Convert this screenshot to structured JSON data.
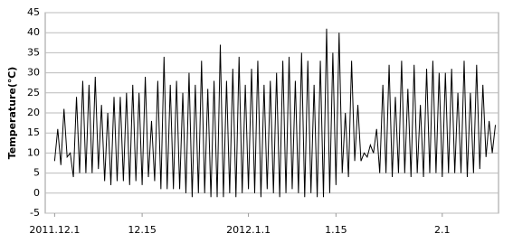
{
  "chart_data": {
    "type": "line",
    "y_label": "Temperature(℃)",
    "x": [
      0,
      0.5,
      1,
      1.5,
      2,
      2.5,
      3,
      3.5,
      4,
      4.5,
      5,
      5.5,
      6,
      6.5,
      7,
      7.5,
      8,
      8.5,
      9,
      9.5,
      10,
      10.5,
      11,
      11.5,
      12,
      12.5,
      13,
      13.5,
      14,
      14.5,
      15,
      15.5,
      16,
      16.5,
      17,
      17.5,
      18,
      18.5,
      19,
      19.5,
      20,
      20.5,
      21,
      21.5,
      22,
      22.5,
      23,
      23.5,
      24,
      24.5,
      25,
      25.5,
      26,
      26.5,
      27,
      27.5,
      28,
      28.5,
      29,
      29.5,
      30,
      30.5,
      31,
      31.5,
      32,
      32.5,
      33,
      33.5,
      34,
      34.5,
      35,
      35.5,
      36,
      36.5,
      37,
      37.5,
      38,
      38.5,
      39,
      39.5,
      40,
      40.5,
      41,
      41.5,
      42,
      42.5,
      43,
      43.5,
      44,
      44.5,
      45,
      45.5,
      46,
      46.5,
      47,
      47.5,
      48,
      48.5,
      49,
      49.5,
      50,
      50.5,
      51,
      51.5,
      52,
      52.5,
      53,
      53.5,
      54,
      54.5,
      55,
      55.5,
      56,
      56.5,
      57,
      57.5,
      58,
      58.5,
      59,
      59.5,
      60,
      60.5,
      61,
      61.5,
      62,
      62.5,
      63,
      63.5,
      64,
      64.5,
      65,
      65.5,
      66,
      66.5,
      67,
      67.5,
      68,
      68.5,
      69,
      69.5,
      70,
      70.5
    ],
    "series": [
      {
        "color": "#000000",
        "values": [
          8,
          16,
          7,
          21,
          9,
          10,
          4,
          24,
          5,
          28,
          5,
          27,
          5,
          29,
          6,
          22,
          3,
          20,
          2,
          24,
          3,
          24,
          3,
          25,
          2,
          27,
          3,
          25,
          2,
          29,
          4,
          18,
          3,
          28,
          1,
          34,
          1,
          27,
          1,
          28,
          1,
          25,
          0,
          30,
          -1,
          27,
          0,
          33,
          0,
          26,
          -1,
          28,
          -1,
          37,
          -1,
          28,
          0,
          31,
          -1,
          34,
          0,
          27,
          1,
          31,
          0,
          33,
          -1,
          27,
          1,
          28,
          0,
          30,
          -1,
          33,
          0,
          34,
          1,
          28,
          0,
          35,
          -1,
          33,
          0,
          27,
          -1,
          33,
          -1,
          41,
          0,
          35,
          2,
          40,
          5,
          20,
          4,
          33,
          8,
          22,
          8,
          10,
          9,
          12,
          10,
          16,
          5,
          27,
          5,
          32,
          4,
          24,
          5,
          33,
          5,
          26,
          4,
          32,
          5,
          22,
          4,
          31,
          5,
          33,
          5,
          30,
          4,
          30,
          5,
          31,
          5,
          25,
          5,
          33,
          4,
          25,
          5,
          32,
          6,
          27,
          9,
          18,
          10,
          17
        ]
      }
    ],
    "xlim": [
      -1.5,
      71
    ],
    "xticks": [
      {
        "value": 0,
        "label": "2011.12.1"
      },
      {
        "value": 14,
        "label": "12.15"
      },
      {
        "value": 31,
        "label": "2012.1.1"
      },
      {
        "value": 45,
        "label": "1.15"
      },
      {
        "value": 62,
        "label": "2.1"
      }
    ],
    "ylim": [
      -5,
      45
    ],
    "yticks": [
      -5,
      0,
      5,
      10,
      15,
      20,
      25,
      30,
      35,
      40,
      45
    ],
    "grid": true
  }
}
